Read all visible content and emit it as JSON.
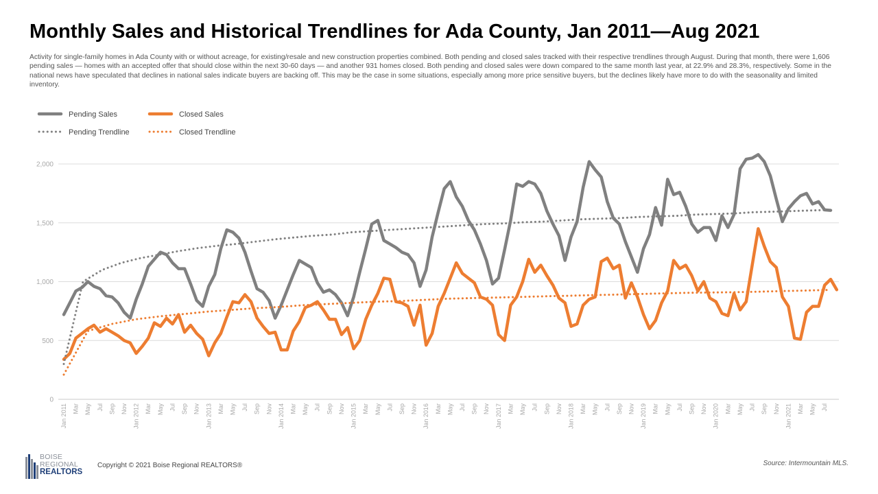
{
  "title": "Monthly Sales and Historical Trendlines for Ada County, Jan 2011—Aug 2021",
  "subtitle": "Activity for single-family homes in Ada County with or without acreage, for existing/resale and new construction properties combined. Both pending and closed sales tracked with their respective trendlines through August. During that month, there were 1,606 pending sales — homes with an accepted offer that should close within the next 30-60 days — and another 931 homes closed. Both pending and closed sales were down compared to the same month last year, at 22.9% and 28.3%, respectively. Some in the national news have speculated that declines in national sales indicate buyers are backing off. This may be the case in some situations, especially among more price sensitive buyers, but the declines likely have more to do with the seasonality and limited inventory.",
  "footer": {
    "copyright": "Copyright © 2021 Boise Regional REALTORS®",
    "source": "Source: Intermountain MLS.",
    "logo_line1": "BOISE",
    "logo_line2": "REGIONAL",
    "logo_line3": "REALTORS"
  },
  "colors": {
    "pending": "#808080",
    "closed": "#ed7d31",
    "grid": "#dcdcdc"
  },
  "chart_data": {
    "type": "line",
    "ylim": [
      0,
      2000
    ],
    "y_ticks": [
      0,
      500,
      1000,
      1500,
      2000
    ],
    "y_tick_labels": [
      "0",
      "500",
      "1,000",
      "1,500",
      "2,000"
    ],
    "grid": true,
    "legend_position": "top-left",
    "x_tick_labels": [
      "Jan 2011",
      "Mar",
      "May",
      "Jul",
      "Sep",
      "Nov",
      "Jan 2012",
      "Mar",
      "May",
      "Jul",
      "Sep",
      "Nov",
      "Jan 2013",
      "Mar",
      "May",
      "Jul",
      "Sep",
      "Nov",
      "Jan 2014",
      "Mar",
      "May",
      "Jul",
      "Sep",
      "Nov",
      "Jan 2015",
      "Mar",
      "May",
      "Jul",
      "Sep",
      "Nov",
      "Jan 2016",
      "Mar",
      "May",
      "Jul",
      "Sep",
      "Nov",
      "Jan 2017",
      "Mar",
      "May",
      "Jul",
      "Sep",
      "Nov",
      "Jan 2018",
      "Mar",
      "May",
      "Jul",
      "Sep",
      "Nov",
      "Jan 2019",
      "Mar",
      "May",
      "Jul",
      "Sep",
      "Nov",
      "Jan 2020",
      "Mar",
      "May",
      "Jul",
      "Sep",
      "Nov",
      "Jan 2021",
      "Mar",
      "May",
      "Jul"
    ],
    "series": [
      {
        "name": "Pending Sales",
        "style": "solid",
        "color": "#808080",
        "values": [
          720,
          820,
          920,
          950,
          1000,
          960,
          940,
          880,
          870,
          820,
          740,
          690,
          850,
          980,
          1130,
          1190,
          1250,
          1230,
          1160,
          1110,
          1110,
          980,
          840,
          790,
          960,
          1060,
          1280,
          1440,
          1420,
          1370,
          1250,
          1090,
          940,
          910,
          840,
          690,
          800,
          930,
          1060,
          1180,
          1150,
          1120,
          990,
          910,
          930,
          890,
          820,
          710,
          870,
          1080,
          1280,
          1490,
          1520,
          1350,
          1320,
          1290,
          1250,
          1230,
          1160,
          960,
          1100,
          1380,
          1590,
          1790,
          1850,
          1720,
          1640,
          1520,
          1440,
          1320,
          1180,
          980,
          1030,
          1270,
          1520,
          1830,
          1810,
          1850,
          1830,
          1750,
          1600,
          1490,
          1390,
          1180,
          1380,
          1510,
          1800,
          2020,
          1950,
          1890,
          1680,
          1540,
          1490,
          1340,
          1210,
          1080,
          1280,
          1400,
          1630,
          1480,
          1870,
          1740,
          1760,
          1640,
          1490,
          1420,
          1460,
          1460,
          1350,
          1560,
          1460,
          1570,
          1960,
          2040,
          2050,
          2080,
          2020,
          1900,
          1700,
          1510,
          1620,
          1680,
          1730,
          1750,
          1660,
          1680,
          1610,
          1606
        ]
      },
      {
        "name": "Closed Sales",
        "style": "solid",
        "color": "#ed7d31",
        "values": [
          340,
          390,
          520,
          560,
          600,
          630,
          570,
          600,
          570,
          540,
          500,
          480,
          390,
          450,
          520,
          650,
          620,
          690,
          640,
          720,
          570,
          630,
          560,
          510,
          370,
          480,
          560,
          700,
          830,
          820,
          890,
          830,
          690,
          620,
          560,
          570,
          420,
          420,
          580,
          660,
          780,
          800,
          830,
          760,
          680,
          680,
          550,
          610,
          430,
          500,
          680,
          800,
          900,
          1030,
          1020,
          830,
          820,
          790,
          630,
          800,
          460,
          560,
          790,
          900,
          1030,
          1160,
          1070,
          1030,
          990,
          870,
          850,
          800,
          550,
          500,
          800,
          870,
          1000,
          1190,
          1080,
          1140,
          1050,
          970,
          860,
          820,
          620,
          640,
          800,
          850,
          870,
          1170,
          1200,
          1110,
          1140,
          860,
          990,
          870,
          720,
          600,
          670,
          820,
          920,
          1180,
          1110,
          1140,
          1050,
          920,
          1000,
          860,
          830,
          730,
          710,
          900,
          760,
          830,
          1140,
          1450,
          1300,
          1170,
          1120,
          870,
          790,
          520,
          510,
          740,
          790,
          790,
          970,
          1020,
          931
        ]
      },
      {
        "name": "Pending Trendline",
        "style": "dotted",
        "color": "#808080",
        "values": [
          300,
          1000,
          1100,
          1160,
          1200,
          1230,
          1260,
          1285,
          1305,
          1320,
          1340,
          1360,
          1375,
          1390,
          1400,
          1420,
          1430,
          1440,
          1450,
          1460,
          1470,
          1480,
          1490,
          1495,
          1505,
          1510,
          1520,
          1530,
          1535,
          1540,
          1550,
          1555,
          1560,
          1570,
          1575,
          1580,
          1590,
          1595,
          1600,
          1605,
          1610
        ]
      },
      {
        "name": "Closed Trendline",
        "style": "dotted",
        "color": "#ed7d31",
        "values": [
          210,
          580,
          640,
          680,
          705,
          725,
          745,
          760,
          775,
          785,
          800,
          810,
          820,
          830,
          835,
          845,
          855,
          860,
          865,
          870,
          875,
          880,
          885,
          890,
          895,
          900,
          905,
          908,
          910,
          915,
          920,
          925,
          930
        ]
      }
    ]
  }
}
